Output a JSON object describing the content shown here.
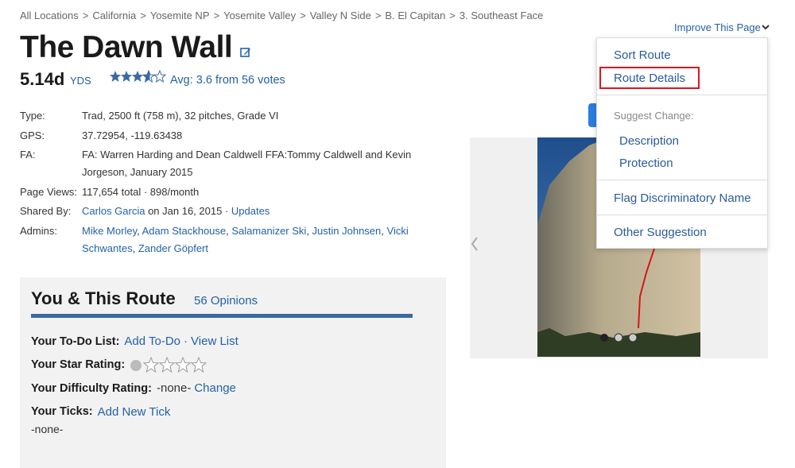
{
  "breadcrumbs": {
    "separator": ">",
    "items": [
      "All Locations",
      "California",
      "Yosemite NP",
      "Yosemite Valley",
      "Valley N Side",
      "B. El Capitan",
      "3. Southeast Face"
    ]
  },
  "header": {
    "title": "The Dawn Wall",
    "grade": "5.14d",
    "grade_system": "YDS",
    "rating": "Avg: 3.6 from 56 votes"
  },
  "details": [
    {
      "label": "Type:",
      "parts": [
        {
          "text": "Trad, 2500 ft (758 m), 32 pitches, Grade VI",
          "link": false
        }
      ]
    },
    {
      "label": "GPS:",
      "parts": [
        {
          "text": "37.72954, -119.63438",
          "link": false
        }
      ]
    },
    {
      "label": "FA:",
      "parts": [
        {
          "text": "FA: Warren Harding and Dean Caldwell FFA:Tommy Caldwell and Kevin Jorgeson, January 2015",
          "link": false
        }
      ]
    },
    {
      "label": "Page Views:",
      "parts": [
        {
          "text": "117,654 total · 898/month",
          "link": false
        }
      ]
    },
    {
      "label": "Shared By:",
      "parts": [
        {
          "text": "Carlos Garcia",
          "link": true
        },
        {
          "text": " on Jan 16, 2015 · ",
          "link": false
        },
        {
          "text": "Updates",
          "link": true
        }
      ]
    },
    {
      "label": "Admins:",
      "parts": [
        {
          "text": "Mike Morley",
          "link": true
        },
        {
          "text": ", ",
          "link": false
        },
        {
          "text": "Adam Stackhouse",
          "link": true
        },
        {
          "text": ", ",
          "link": false
        },
        {
          "text": "Salamanizer Ski",
          "link": true
        },
        {
          "text": ", ",
          "link": false
        },
        {
          "text": "Justin Johnsen",
          "link": true
        },
        {
          "text": ", ",
          "link": false
        },
        {
          "text": "Vicki Schwantes",
          "link": true
        },
        {
          "text": ", ",
          "link": false
        },
        {
          "text": "Zander Göpfert",
          "link": true
        }
      ]
    }
  ],
  "you": {
    "title": "You & This Route",
    "opinions": "56 Opinions",
    "rows": [
      {
        "label": "Your To-Do List:",
        "parts": [
          {
            "text": "Add To-Do",
            "link": true
          },
          {
            "text": "·",
            "link": true
          },
          {
            "text": "View List",
            "link": true
          }
        ]
      },
      {
        "label": "Your Star Rating:"
      },
      {
        "label": "Your Difficulty Rating:",
        "parts": [
          {
            "text": "-none-",
            "link": false
          },
          {
            "text": "Change",
            "link": true
          }
        ]
      },
      {
        "label": "Your Ticks:",
        "parts": [
          {
            "text": "Add New Tick",
            "link": true
          }
        ]
      }
    ],
    "ticks_none": "-none-"
  },
  "menu": {
    "toggle": "Improve This Page",
    "section": "Suggest Change:",
    "items": [
      "Sort Route",
      "Route Details",
      "Description",
      "Protection",
      "Flag Discriminatory Name",
      "Other Suggestion"
    ]
  }
}
